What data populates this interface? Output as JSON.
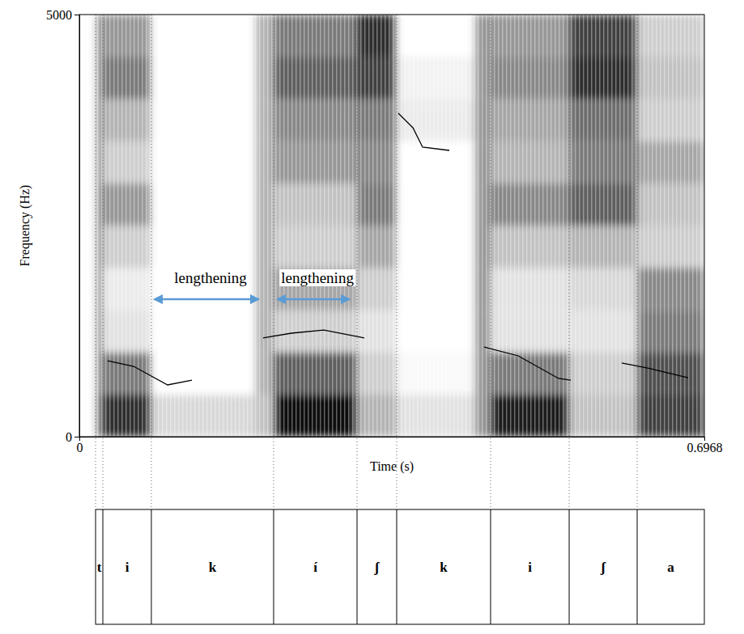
{
  "chart_data": {
    "type": "spectrogram",
    "x_label": "Time (s)",
    "y_label": "Frequency (Hz)",
    "xlim": [
      0,
      0.6968
    ],
    "ylim": [
      0,
      5000
    ],
    "xticks": [
      0,
      0.6968
    ],
    "yticks": [
      0,
      5000
    ],
    "spectrogram": {
      "time_edges": [
        0,
        0.0181,
        0.0262,
        0.0803,
        0.1958,
        0.2166,
        0.3096,
        0.3538,
        0.4405,
        0.4585,
        0.5461,
        0.6219,
        0.6968
      ],
      "freq_edges": [
        0,
        500,
        1000,
        1500,
        2000,
        2500,
        3000,
        3500,
        4000,
        4500,
        5000
      ],
      "intensity": [
        [
          0,
          0,
          0,
          0,
          0,
          0,
          0,
          0,
          0,
          0
        ],
        [
          0.6,
          0.5,
          0.5,
          0.5,
          0.5,
          0.5,
          0.5,
          0.5,
          0.5,
          0.5
        ],
        [
          0.85,
          0.6,
          0.2,
          0.15,
          0.3,
          0.5,
          0.3,
          0.4,
          0.6,
          0.5
        ],
        [
          0.25,
          0,
          0,
          0,
          0,
          0,
          0,
          0,
          0,
          0
        ],
        [
          0.35,
          0.4,
          0.4,
          0.4,
          0.4,
          0.4,
          0.4,
          0.4,
          0.4,
          0.4
        ],
        [
          0.95,
          0.7,
          0.3,
          0.45,
          0.3,
          0.35,
          0.5,
          0.55,
          0.7,
          0.6
        ],
        [
          0.4,
          0.3,
          0.2,
          0.3,
          0.45,
          0.6,
          0.55,
          0.6,
          0.8,
          0.85
        ],
        [
          0.2,
          0.05,
          0,
          0,
          0,
          0,
          0,
          0.15,
          0.1,
          0
        ],
        [
          0.5,
          0.5,
          0.5,
          0.5,
          0.5,
          0.5,
          0.5,
          0.5,
          0.5,
          0.5
        ],
        [
          0.9,
          0.6,
          0.2,
          0.2,
          0.35,
          0.55,
          0.4,
          0.45,
          0.55,
          0.5
        ],
        [
          0.35,
          0.3,
          0.2,
          0.25,
          0.4,
          0.7,
          0.6,
          0.65,
          0.85,
          0.8
        ],
        [
          0.8,
          0.75,
          0.6,
          0.55,
          0.3,
          0.35,
          0.45,
          0.3,
          0.35,
          0.3
        ]
      ]
    },
    "pitch": [
      {
        "x": [
          0.0316,
          0.0605,
          0.0984,
          0.1255
        ],
        "values": [
          900,
          833,
          613,
          670
        ]
      },
      {
        "x": [
          0.2049,
          0.2365,
          0.2726,
          0.3177
        ],
        "values": [
          1169,
          1226,
          1264,
          1169
        ]
      },
      {
        "x": [
          0.3556,
          0.3719,
          0.3827,
          0.4125
        ],
        "values": [
          3831,
          3659,
          3429,
          3391
        ]
      },
      {
        "x": [
          0.4513,
          0.4892,
          0.5343,
          0.5479
        ],
        "values": [
          1063,
          958,
          690,
          670
        ]
      },
      {
        "x": [
          0.6047,
          0.6336,
          0.6788
        ],
        "values": [
          872,
          814,
          699
        ]
      }
    ],
    "annotations": [
      {
        "text": "lengthening",
        "x": [
          0.0921,
          0.2004
        ],
        "y": 1628,
        "color": "#5b9bd5"
      },
      {
        "text": "lengthening",
        "x": [
          0.2293,
          0.3015
        ],
        "y": 1628,
        "color": "#5b9bd5"
      }
    ],
    "tier": {
      "boundaries": [
        0.0181,
        0.0262,
        0.0803,
        0.2166,
        0.3096,
        0.3538,
        0.4585,
        0.5461,
        0.6219,
        0.6968
      ],
      "labels": [
        "t",
        "i",
        "k",
        "í",
        "ʃ",
        "k",
        "i",
        "ʃ",
        "a"
      ]
    }
  }
}
